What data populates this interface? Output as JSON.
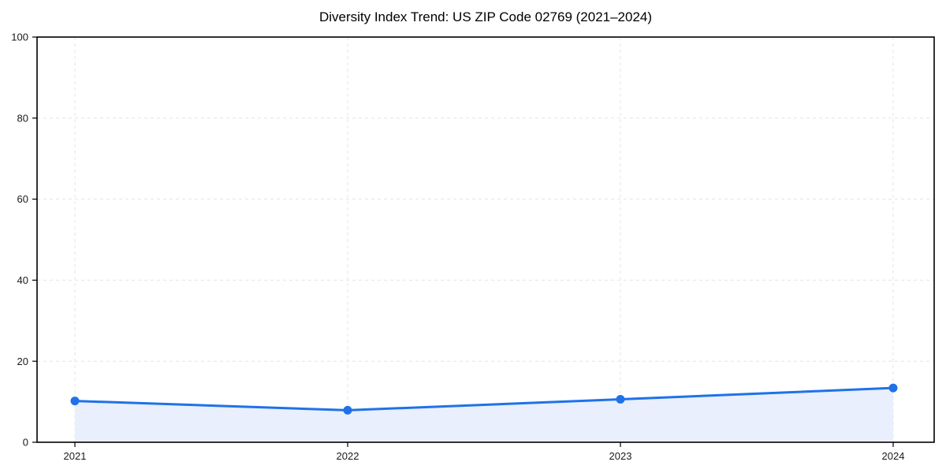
{
  "chart_data": {
    "type": "area",
    "title": "Diversity Index Trend: US ZIP Code 02769 (2021–2024)",
    "categories": [
      "2021",
      "2022",
      "2023",
      "2024"
    ],
    "series": [
      {
        "name": "Diversity Index",
        "values": [
          10.2,
          7.9,
          10.6,
          13.4
        ]
      }
    ],
    "xlabel": "",
    "ylabel": "",
    "ylim": [
      0,
      100
    ],
    "yticks": [
      0,
      20,
      40,
      60,
      80,
      100
    ],
    "grid": true,
    "grid_style": "dashed",
    "legend": "none",
    "marker": "circle",
    "colors": {
      "line": "#1f72e8",
      "marker": "#1f72e8",
      "area_fill": "#e9effc",
      "grid": "#e4e4e4",
      "spine": "#000000",
      "tick_text": "#1a1a1a",
      "background": "#ffffff"
    }
  }
}
